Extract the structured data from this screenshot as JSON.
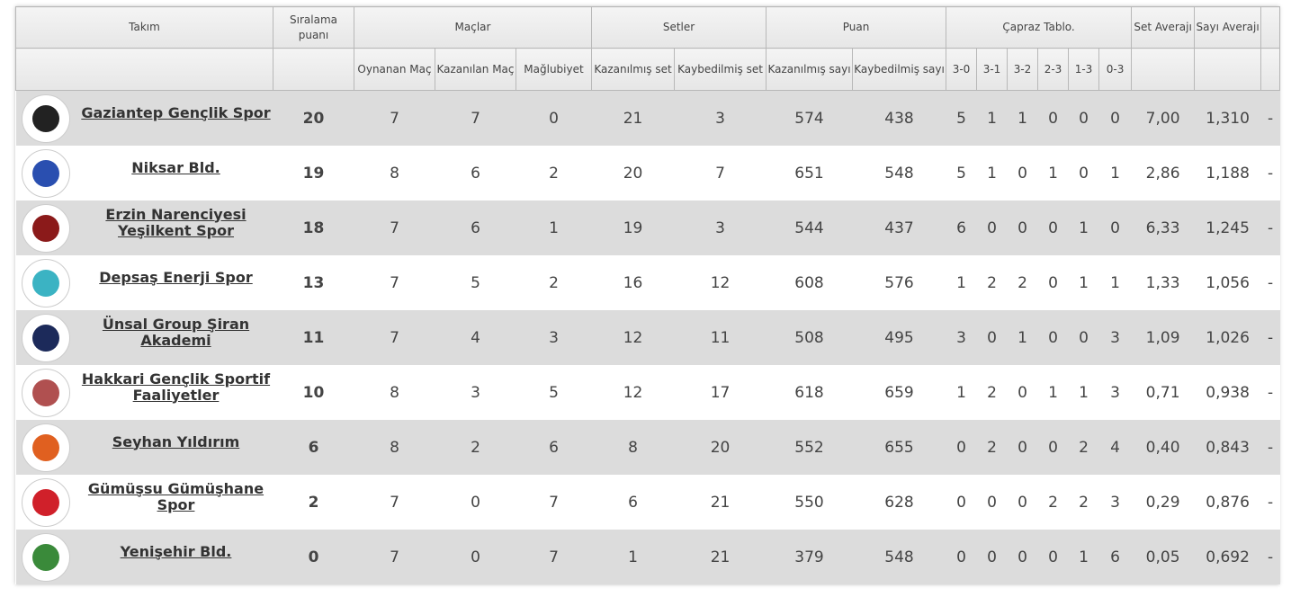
{
  "headers": {
    "team": "Takım",
    "ranking_points": "Sıralama puanı",
    "matches": "Maçlar",
    "sets": "Setler",
    "points": "Puan",
    "cross_table": "Çapraz Tablo.",
    "set_average": "Set Averajı",
    "point_average": "Sayı Averajı",
    "played": "Oynanan Maç",
    "won": "Kazanılan Maç",
    "lost": "Mağlubiyet",
    "sets_won": "Kazanılmış set",
    "sets_lost": "Kaybedilmiş set",
    "points_won": "Kazanılmış sayı",
    "points_lost": "Kaybedilmiş sayı",
    "cross": [
      "3-0",
      "3-1",
      "3-2",
      "2-3",
      "1-3",
      "0-3"
    ]
  },
  "rows": [
    {
      "team": "Gaziantep Gençlik Spor",
      "pts": "20",
      "p": "7",
      "w": "7",
      "l": "0",
      "sw": "21",
      "sl": "3",
      "pw": "574",
      "pl": "438",
      "c": [
        "5",
        "1",
        "1",
        "0",
        "0",
        "0"
      ],
      "sa": "7,00",
      "pa": "1,310",
      "x": "-",
      "color": "#222222"
    },
    {
      "team": "Niksar Bld.",
      "pts": "19",
      "p": "8",
      "w": "6",
      "l": "2",
      "sw": "20",
      "sl": "7",
      "pw": "651",
      "pl": "548",
      "c": [
        "5",
        "1",
        "0",
        "1",
        "0",
        "1"
      ],
      "sa": "2,86",
      "pa": "1,188",
      "x": "-",
      "color": "#2a4fb0"
    },
    {
      "team": "Erzin Narenciyesi Yeşilkent Spor",
      "pts": "18",
      "p": "7",
      "w": "6",
      "l": "1",
      "sw": "19",
      "sl": "3",
      "pw": "544",
      "pl": "437",
      "c": [
        "6",
        "0",
        "0",
        "0",
        "1",
        "0"
      ],
      "sa": "6,33",
      "pa": "1,245",
      "x": "-",
      "color": "#8b1a1a"
    },
    {
      "team": "Depsaş Enerji Spor",
      "pts": "13",
      "p": "7",
      "w": "5",
      "l": "2",
      "sw": "16",
      "sl": "12",
      "pw": "608",
      "pl": "576",
      "c": [
        "1",
        "2",
        "2",
        "0",
        "1",
        "1"
      ],
      "sa": "1,33",
      "pa": "1,056",
      "x": "-",
      "color": "#3bb3c3"
    },
    {
      "team": "Ünsal Group Şiran Akademi",
      "pts": "11",
      "p": "7",
      "w": "4",
      "l": "3",
      "sw": "12",
      "sl": "11",
      "pw": "508",
      "pl": "495",
      "c": [
        "3",
        "0",
        "1",
        "0",
        "0",
        "3"
      ],
      "sa": "1,09",
      "pa": "1,026",
      "x": "-",
      "color": "#1c2a5a"
    },
    {
      "team": "Hakkari Gençlik Sportif Faaliyetler",
      "pts": "10",
      "p": "8",
      "w": "3",
      "l": "5",
      "sw": "12",
      "sl": "17",
      "pw": "618",
      "pl": "659",
      "c": [
        "1",
        "2",
        "0",
        "1",
        "1",
        "3"
      ],
      "sa": "0,71",
      "pa": "0,938",
      "x": "-",
      "color": "#b05050"
    },
    {
      "team": "Seyhan Yıldırım",
      "pts": "6",
      "p": "8",
      "w": "2",
      "l": "6",
      "sw": "8",
      "sl": "20",
      "pw": "552",
      "pl": "655",
      "c": [
        "0",
        "2",
        "0",
        "0",
        "2",
        "4"
      ],
      "sa": "0,40",
      "pa": "0,843",
      "x": "-",
      "color": "#e06020"
    },
    {
      "team": "Gümüşsu Gümüşhane Spor",
      "pts": "2",
      "p": "7",
      "w": "0",
      "l": "7",
      "sw": "6",
      "sl": "21",
      "pw": "550",
      "pl": "628",
      "c": [
        "0",
        "0",
        "0",
        "2",
        "2",
        "3"
      ],
      "sa": "0,29",
      "pa": "0,876",
      "x": "-",
      "color": "#d0202a"
    },
    {
      "team": "Yenişehir Bld.",
      "pts": "0",
      "p": "7",
      "w": "0",
      "l": "7",
      "sw": "1",
      "sl": "21",
      "pw": "379",
      "pl": "548",
      "c": [
        "0",
        "0",
        "0",
        "0",
        "1",
        "6"
      ],
      "sa": "0,05",
      "pa": "0,692",
      "x": "-",
      "color": "#3a8a3a"
    }
  ]
}
